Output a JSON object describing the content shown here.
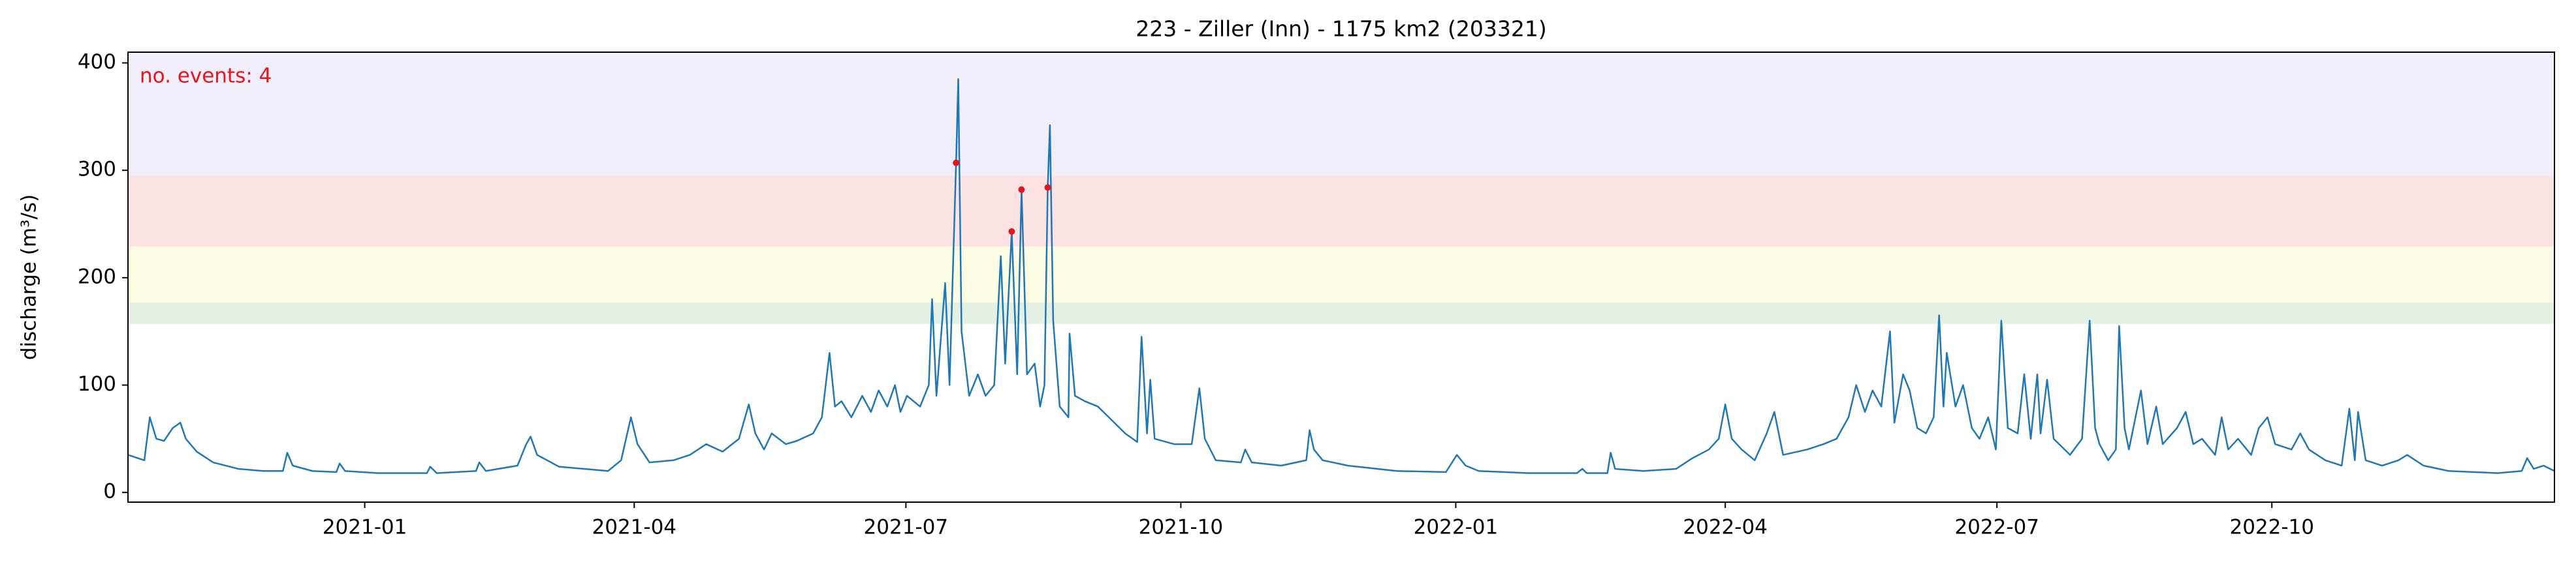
{
  "chart_data": {
    "type": "line",
    "title": "223 - Ziller (Inn) - 1175 km2 (203321)",
    "ylabel": "discharge (m³/s)",
    "annotation": "no. events: 4",
    "annotation_color": "#e8141c",
    "color": "#1f77b4",
    "xlim": [
      2020.783,
      2023.007
    ],
    "ylim": [
      -9,
      410
    ],
    "yticks": [
      0,
      100,
      200,
      300,
      400
    ],
    "xticks": [
      {
        "value": 2021.0,
        "label": "2021-01"
      },
      {
        "value": 2021.247,
        "label": "2021-04"
      },
      {
        "value": 2021.496,
        "label": "2021-07"
      },
      {
        "value": 2021.748,
        "label": "2021-10"
      },
      {
        "value": 2022.0,
        "label": "2022-01"
      },
      {
        "value": 2022.247,
        "label": "2022-04"
      },
      {
        "value": 2022.496,
        "label": "2022-07"
      },
      {
        "value": 2022.748,
        "label": "2022-10"
      }
    ],
    "bands": [
      {
        "range": [
          157,
          177
        ],
        "color": "#e3f0e3"
      },
      {
        "range": [
          177,
          229
        ],
        "color": "#fdfde3"
      },
      {
        "range": [
          229,
          295
        ],
        "color": "#fde2e4"
      },
      {
        "range": [
          295,
          410
        ],
        "color": "#f1eef9"
      }
    ],
    "x": [
      2020.783,
      2020.798,
      2020.803,
      2020.809,
      2020.816,
      2020.824,
      2020.831,
      2020.836,
      2020.846,
      2020.861,
      2020.884,
      2020.907,
      2020.925,
      2020.929,
      2020.934,
      2020.952,
      2020.974,
      2020.977,
      2020.982,
      2021.012,
      2021.057,
      2021.06,
      2021.066,
      2021.102,
      2021.105,
      2021.111,
      2021.14,
      2021.148,
      2021.152,
      2021.158,
      2021.178,
      2021.223,
      2021.235,
      2021.244,
      2021.25,
      2021.261,
      2021.283,
      2021.298,
      2021.313,
      2021.328,
      2021.343,
      2021.352,
      2021.358,
      2021.366,
      2021.373,
      2021.386,
      2021.396,
      2021.411,
      2021.419,
      2021.426,
      2021.431,
      2021.437,
      2021.446,
      2021.456,
      2021.464,
      2021.471,
      2021.479,
      2021.486,
      2021.491,
      2021.497,
      2021.509,
      2021.517,
      2021.52,
      2021.524,
      2021.532,
      2021.536,
      2021.542,
      2021.544,
      2021.547,
      2021.554,
      2021.562,
      2021.569,
      2021.577,
      2021.583,
      2021.587,
      2021.593,
      2021.598,
      2021.602,
      2021.607,
      2021.614,
      2021.619,
      2021.623,
      2021.626,
      2021.628,
      2021.631,
      2021.637,
      2021.645,
      2021.646,
      2021.651,
      2021.66,
      2021.672,
      2021.682,
      2021.697,
      2021.708,
      2021.712,
      2021.717,
      2021.72,
      2021.724,
      2021.742,
      2021.758,
      2021.765,
      2021.77,
      2021.78,
      2021.803,
      2021.807,
      2021.813,
      2021.84,
      2021.863,
      2021.866,
      2021.87,
      2021.878,
      2021.901,
      2021.946,
      2021.991,
      2022.001,
      2022.009,
      2022.021,
      2022.066,
      2022.111,
      2022.116,
      2022.12,
      2022.139,
      2022.142,
      2022.146,
      2022.172,
      2022.202,
      2022.217,
      2022.232,
      2022.241,
      2022.247,
      2022.253,
      2022.262,
      2022.274,
      2022.285,
      2022.292,
      2022.3,
      2022.322,
      2022.337,
      2022.349,
      2022.36,
      2022.367,
      2022.375,
      2022.382,
      2022.39,
      2022.398,
      2022.402,
      2022.41,
      2022.416,
      2022.423,
      2022.431,
      2022.438,
      2022.443,
      2022.447,
      2022.45,
      2022.458,
      2022.465,
      2022.473,
      2022.48,
      2022.488,
      2022.495,
      2022.5,
      2022.506,
      2022.515,
      2022.521,
      2022.527,
      2022.533,
      2022.536,
      2022.542,
      2022.548,
      2022.563,
      2022.574,
      2022.581,
      2022.586,
      2022.59,
      2022.598,
      2022.605,
      2022.608,
      2022.613,
      2022.617,
      2022.628,
      2022.634,
      2022.642,
      2022.648,
      2022.661,
      2022.669,
      2022.676,
      2022.684,
      2022.696,
      2022.702,
      2022.708,
      2022.717,
      2022.729,
      2022.736,
      2022.744,
      2022.751,
      2022.766,
      2022.774,
      2022.782,
      2022.797,
      2022.812,
      2022.819,
      2022.824,
      2022.827,
      2022.834,
      2022.849,
      2022.864,
      2022.872,
      2022.887,
      2022.91,
      2022.955,
      2022.977,
      2022.982,
      2022.988,
      2022.997,
      2023.007
    ],
    "values": [
      35,
      30,
      70,
      50,
      48,
      60,
      65,
      50,
      38,
      28,
      22,
      20,
      20,
      37,
      25,
      20,
      19,
      27,
      20,
      18,
      18,
      24,
      18,
      20,
      28,
      20,
      25,
      45,
      52,
      35,
      24,
      20,
      30,
      70,
      45,
      28,
      30,
      35,
      45,
      38,
      50,
      82,
      55,
      40,
      55,
      45,
      48,
      55,
      70,
      130,
      80,
      85,
      70,
      90,
      75,
      95,
      80,
      100,
      75,
      90,
      80,
      100,
      180,
      90,
      195,
      100,
      307,
      385,
      150,
      90,
      110,
      90,
      100,
      220,
      120,
      243,
      110,
      282,
      110,
      120,
      80,
      100,
      284,
      342,
      160,
      80,
      70,
      148,
      90,
      85,
      80,
      70,
      55,
      47,
      145,
      55,
      105,
      50,
      45,
      45,
      97,
      50,
      30,
      28,
      40,
      28,
      25,
      30,
      58,
      40,
      30,
      25,
      20,
      19,
      35,
      25,
      20,
      18,
      18,
      22,
      18,
      18,
      37,
      22,
      20,
      22,
      32,
      40,
      50,
      82,
      50,
      40,
      30,
      55,
      75,
      35,
      40,
      45,
      50,
      70,
      100,
      75,
      95,
      80,
      150,
      65,
      110,
      95,
      60,
      55,
      70,
      165,
      80,
      130,
      80,
      100,
      60,
      50,
      70,
      40,
      160,
      60,
      55,
      110,
      50,
      110,
      55,
      105,
      50,
      35,
      50,
      160,
      60,
      45,
      30,
      40,
      155,
      60,
      40,
      95,
      45,
      80,
      45,
      60,
      75,
      45,
      50,
      35,
      70,
      40,
      50,
      35,
      60,
      70,
      45,
      40,
      55,
      40,
      30,
      25,
      78,
      30,
      75,
      30,
      25,
      30,
      35,
      25,
      20,
      18,
      20,
      32,
      22,
      25,
      20
    ],
    "events": {
      "color": "#e8141c",
      "x": [
        2021.542,
        2021.593,
        2021.602,
        2021.626
      ],
      "values": [
        307,
        243,
        282,
        284
      ]
    }
  }
}
